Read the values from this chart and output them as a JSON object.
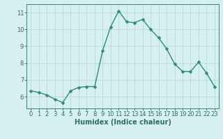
{
  "x": [
    0,
    1,
    2,
    3,
    4,
    5,
    6,
    7,
    8,
    9,
    10,
    11,
    12,
    13,
    14,
    15,
    16,
    17,
    18,
    19,
    20,
    21,
    22,
    23
  ],
  "y": [
    6.35,
    6.25,
    6.1,
    5.85,
    5.65,
    6.35,
    6.55,
    6.6,
    6.6,
    8.75,
    10.15,
    11.1,
    10.45,
    10.4,
    10.6,
    10.0,
    9.5,
    8.85,
    7.95,
    7.5,
    7.5,
    8.05,
    7.4,
    6.6
  ],
  "line_color": "#2e8b7a",
  "marker": "D",
  "marker_size": 2.5,
  "bg_color": "#d6f0ef",
  "grid_color": "#b8d8d8",
  "axis_color": "#2e6b6a",
  "xlabel": "Humidex (Indice chaleur)",
  "xlabel_fontsize": 7,
  "tick_fontsize": 6,
  "ylim": [
    5.3,
    11.5
  ],
  "xlim": [
    -0.5,
    23.5
  ],
  "yticks": [
    6,
    7,
    8,
    9,
    10,
    11
  ],
  "xticks": [
    0,
    1,
    2,
    3,
    4,
    5,
    6,
    7,
    8,
    9,
    10,
    11,
    12,
    13,
    14,
    15,
    16,
    17,
    18,
    19,
    20,
    21,
    22,
    23
  ]
}
